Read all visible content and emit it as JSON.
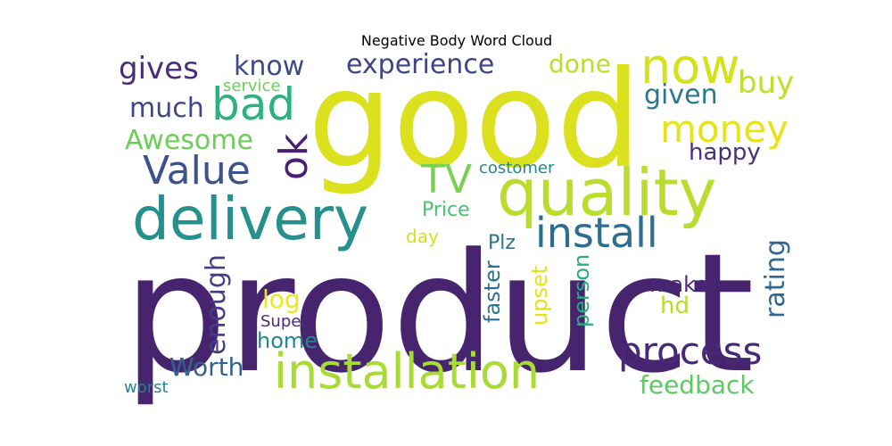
{
  "title": "Negative Body Word Cloud",
  "words": [
    {
      "text": "product",
      "color": "#46246e",
      "rotated": false
    },
    {
      "text": "good",
      "color": "#dbe11f",
      "rotated": false
    },
    {
      "text": "quality",
      "color": "#b8dd2c",
      "rotated": false
    },
    {
      "text": "delivery",
      "color": "#25908c",
      "rotated": false
    },
    {
      "text": "installation",
      "color": "#a8db34",
      "rotated": false
    },
    {
      "text": "process",
      "color": "#482878",
      "rotated": false
    },
    {
      "text": "install",
      "color": "#2c6e8e",
      "rotated": false
    },
    {
      "text": "now",
      "color": "#d4e21a",
      "rotated": false
    },
    {
      "text": "bad",
      "color": "#2db27d",
      "rotated": false
    },
    {
      "text": "Value",
      "color": "#3b528b",
      "rotated": false
    },
    {
      "text": "ok",
      "color": "#482173",
      "rotated": true
    },
    {
      "text": "money",
      "color": "#e5e419",
      "rotated": false
    },
    {
      "text": "experience",
      "color": "#414487",
      "rotated": false
    },
    {
      "text": "gives",
      "color": "#472d7b",
      "rotated": false
    },
    {
      "text": "know",
      "color": "#3e4a89",
      "rotated": false
    },
    {
      "text": "much",
      "color": "#3f4788",
      "rotated": false
    },
    {
      "text": "Awesome",
      "color": "#6ccd5a",
      "rotated": false
    },
    {
      "text": "TV",
      "color": "#7ad151",
      "rotated": false
    },
    {
      "text": "buy",
      "color": "#bddf26",
      "rotated": false
    },
    {
      "text": "given",
      "color": "#2a788e",
      "rotated": false
    },
    {
      "text": "done",
      "color": "#bade28",
      "rotated": false
    },
    {
      "text": "happy",
      "color": "#46327e",
      "rotated": false
    },
    {
      "text": "Price",
      "color": "#4ac16d",
      "rotated": false
    },
    {
      "text": "day",
      "color": "#d2e21b",
      "rotated": false
    },
    {
      "text": "Plz",
      "color": "#2a768e",
      "rotated": false
    },
    {
      "text": "enough",
      "color": "#433e85",
      "rotated": true
    },
    {
      "text": "log",
      "color": "#f1e51d",
      "rotated": false
    },
    {
      "text": "home",
      "color": "#24878e",
      "rotated": false
    },
    {
      "text": "Worth",
      "color": "#33638d",
      "rotated": false
    },
    {
      "text": "Super",
      "color": "#472c7a",
      "rotated": false
    },
    {
      "text": "service",
      "color": "#6ccd5a",
      "rotated": false
    },
    {
      "text": "costomer",
      "color": "#23898e",
      "rotated": false
    },
    {
      "text": "faster",
      "color": "#2e6f8e",
      "rotated": true
    },
    {
      "text": "upset",
      "color": "#e2e418",
      "rotated": true
    },
    {
      "text": "person",
      "color": "#29af7f",
      "rotated": true
    },
    {
      "text": "make",
      "color": "#482979",
      "rotated": false
    },
    {
      "text": "hd",
      "color": "#b5de2b",
      "rotated": false
    },
    {
      "text": "rating",
      "color": "#31668e",
      "rotated": true
    },
    {
      "text": "feedback",
      "color": "#5ec962",
      "rotated": false
    },
    {
      "text": "worst",
      "color": "#27808e",
      "rotated": false
    }
  ]
}
